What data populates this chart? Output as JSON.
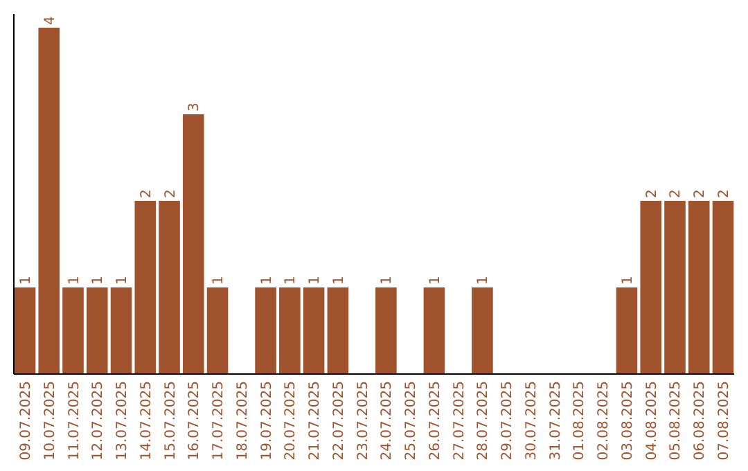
{
  "chart_data": {
    "type": "bar",
    "color": "#a0522d",
    "categories": [
      "09.07.2025",
      "10.07.2025",
      "11.07.2025",
      "12.07.2025",
      "13.07.2025",
      "14.07.2025",
      "15.07.2025",
      "16.07.2025",
      "17.07.2025",
      "18.07.2025",
      "19.07.2025",
      "20.07.2025",
      "21.07.2025",
      "22.07.2025",
      "23.07.2025",
      "24.07.2025",
      "25.07.2025",
      "26.07.2025",
      "27.07.2025",
      "28.07.2025",
      "29.07.2025",
      "30.07.2025",
      "31.07.2025",
      "01.08.2025",
      "02.08.2025",
      "03.08.2025",
      "04.08.2025",
      "05.08.2025",
      "06.08.2025",
      "07.08.2025"
    ],
    "values": [
      1,
      4,
      1,
      1,
      1,
      2,
      2,
      3,
      1,
      0,
      1,
      1,
      1,
      1,
      0,
      1,
      0,
      1,
      0,
      1,
      0,
      0,
      0,
      0,
      0,
      1,
      2,
      2,
      2,
      2
    ],
    "value_labels": [
      "1",
      "4",
      "1",
      "1",
      "1",
      "2",
      "2",
      "3",
      "1",
      null,
      "1",
      "1",
      "1",
      "1",
      null,
      "1",
      null,
      "1",
      null,
      "1",
      null,
      null,
      null,
      null,
      null,
      "1",
      "2",
      "2",
      "2",
      "2"
    ]
  }
}
